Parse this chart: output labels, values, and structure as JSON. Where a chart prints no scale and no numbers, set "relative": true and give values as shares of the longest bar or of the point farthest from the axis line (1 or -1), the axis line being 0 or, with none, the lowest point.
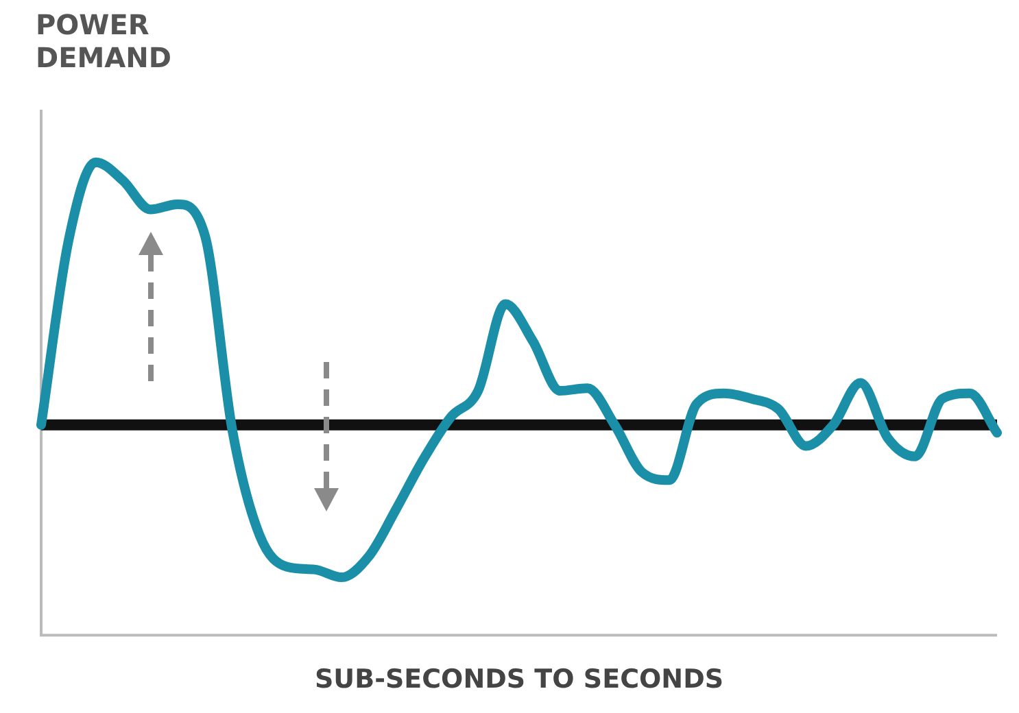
{
  "chart_data": {
    "type": "line",
    "title": "POWER DEMAND",
    "xlabel": "SUB-SECONDS TO SECONDS",
    "relative": true,
    "marker": "none",
    "line_style": "solid",
    "legend": false,
    "grid": false,
    "categories": [
      null,
      null,
      null,
      null,
      null,
      null,
      null,
      null,
      null,
      null,
      null,
      null,
      null,
      null,
      null,
      null,
      null,
      null,
      null,
      null,
      null,
      null,
      null,
      null,
      null,
      null,
      null,
      null,
      null,
      null,
      null,
      null,
      null,
      null,
      null,
      null
    ],
    "series": [
      {
        "color": "#1b8fa8",
        "values": [
          0,
          0.7,
          1,
          0.93,
          0.82,
          0.84,
          0.72,
          -0.02,
          -0.42,
          -0.54,
          -0.55,
          -0.58,
          -0.5,
          -0.32,
          -0.13,
          0.03,
          0.13,
          0.46,
          0.32,
          0.13,
          0.14,
          0,
          -0.18,
          -0.21,
          0.08,
          0.12,
          0.1,
          0.06,
          -0.08,
          0,
          0.16,
          -0.05,
          -0.12,
          0.1,
          0.12,
          -0.03
        ]
      }
    ]
  }
}
